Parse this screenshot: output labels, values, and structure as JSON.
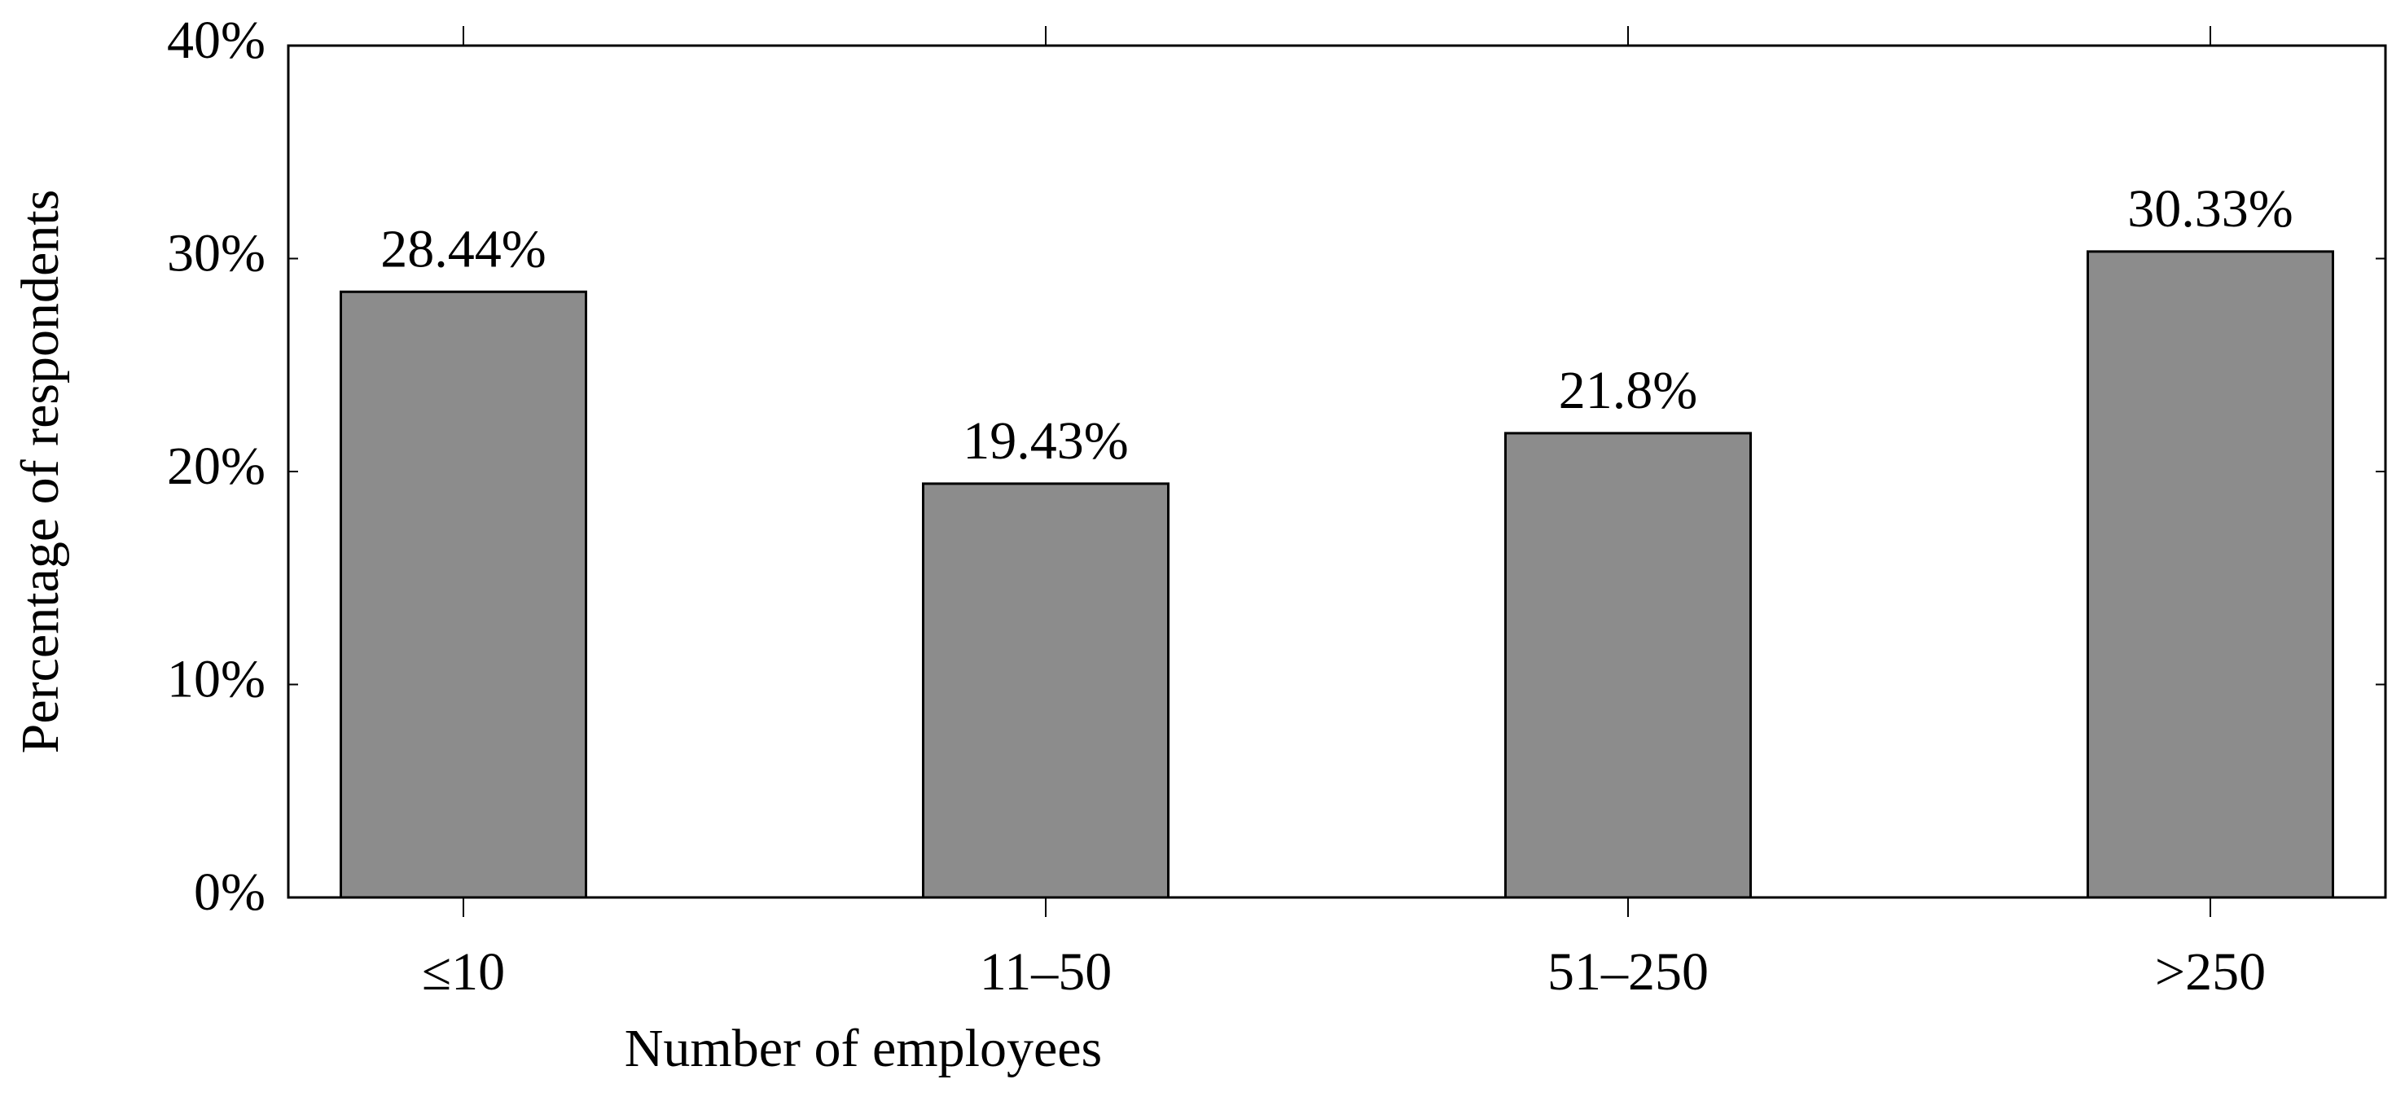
{
  "chart_data": {
    "type": "bar",
    "x_label": "Number of employees",
    "y_label": "Percentage of respondents",
    "categories": [
      "≤10",
      "11–50",
      "51–250",
      ">250"
    ],
    "values": [
      28.44,
      19.43,
      21.8,
      30.33
    ],
    "value_labels": [
      "28.44%",
      "19.43%",
      "21.8%",
      "30.33%"
    ],
    "color": "#8c8c8c",
    "ylim": [
      0,
      40
    ],
    "yticks": [
      {
        "value": 0,
        "label": "0%"
      },
      {
        "value": 10,
        "label": "10%"
      },
      {
        "value": 20,
        "label": "20%"
      },
      {
        "value": 30,
        "label": "30%"
      },
      {
        "value": 40,
        "label": "40%"
      }
    ]
  }
}
